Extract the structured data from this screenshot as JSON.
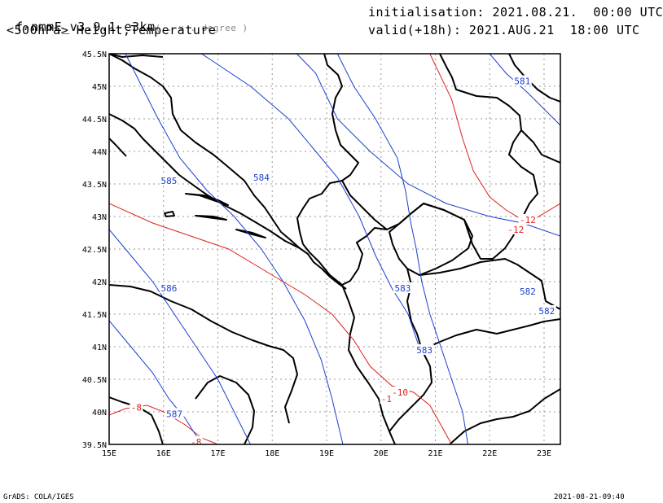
{
  "header": {
    "model": "f-nmmE_v3.9.1-e3km",
    "model_unit": "( . x . degree )",
    "level_title": "<500hPa> Height,Temperature",
    "init_label": "initialisation: 2021.08.21.  00:00 UTC",
    "valid_label": "valid(+18h): 2021.AUG.21  18:00 UTC"
  },
  "footer": {
    "credit": "GrADS: COLA/IGES",
    "timestamp": "2021-08-21-09:40"
  },
  "map": {
    "lon_range": [
      15,
      23.3
    ],
    "lat_range": [
      39.5,
      45.5
    ],
    "lon_ticks": [
      "15E",
      "16E",
      "17E",
      "18E",
      "19E",
      "20E",
      "21E",
      "22E",
      "23E"
    ],
    "lat_ticks": [
      "39.5N",
      "40N",
      "40.5N",
      "41N",
      "41.5N",
      "42N",
      "42.5N",
      "43N",
      "43.5N",
      "44N",
      "44.5N",
      "45N",
      "45.5N"
    ],
    "height_color": "#1a3fd0",
    "temperature_color": "#e0201c",
    "coast_color": "#000000",
    "height_contours": [
      {
        "label": "581",
        "points": [
          [
            18.45,
            45.5
          ],
          [
            18.8,
            45.2
          ],
          [
            19.2,
            44.5
          ],
          [
            19.8,
            44.0
          ],
          [
            20.5,
            43.5
          ],
          [
            21.2,
            43.2
          ],
          [
            22.0,
            43.0
          ],
          [
            22.6,
            42.9
          ],
          [
            23.3,
            42.7
          ]
        ]
      },
      {
        "label": "582",
        "points": [
          [
            22.0,
            45.5
          ],
          [
            22.3,
            45.2
          ],
          [
            22.7,
            44.9
          ],
          [
            23.3,
            44.4
          ]
        ]
      },
      {
        "label": "583",
        "points": [
          [
            19.2,
            45.5
          ],
          [
            19.5,
            45.0
          ],
          [
            19.9,
            44.5
          ],
          [
            20.3,
            43.9
          ],
          [
            20.45,
            43.4
          ],
          [
            20.55,
            42.9
          ],
          [
            20.65,
            42.5
          ],
          [
            20.75,
            42.0
          ],
          [
            20.9,
            41.5
          ],
          [
            21.1,
            41.0
          ],
          [
            21.3,
            40.5
          ],
          [
            21.5,
            40.0
          ],
          [
            21.6,
            39.5
          ]
        ]
      },
      {
        "label": "584",
        "points": [
          [
            16.7,
            45.5
          ],
          [
            17.6,
            45.0
          ],
          [
            18.3,
            44.5
          ],
          [
            18.8,
            44.0
          ],
          [
            19.2,
            43.6
          ],
          [
            19.6,
            43.0
          ],
          [
            19.9,
            42.4
          ],
          [
            20.2,
            41.9
          ],
          [
            20.5,
            41.5
          ],
          [
            20.7,
            41.0
          ]
        ]
      },
      {
        "label": "585",
        "points": [
          [
            15.3,
            45.5
          ],
          [
            15.6,
            45.0
          ],
          [
            15.9,
            44.5
          ],
          [
            16.3,
            43.9
          ],
          [
            16.8,
            43.4
          ],
          [
            17.3,
            43.0
          ],
          [
            17.8,
            42.5
          ],
          [
            18.2,
            42.0
          ],
          [
            18.6,
            41.4
          ],
          [
            18.9,
            40.8
          ],
          [
            19.1,
            40.2
          ],
          [
            19.3,
            39.5
          ]
        ]
      },
      {
        "label": "586",
        "points": [
          [
            15.0,
            42.8
          ],
          [
            15.4,
            42.4
          ],
          [
            15.8,
            42.0
          ],
          [
            16.2,
            41.5
          ],
          [
            16.6,
            41.0
          ],
          [
            17.0,
            40.5
          ],
          [
            17.3,
            40.0
          ],
          [
            17.6,
            39.5
          ]
        ]
      },
      {
        "label": "587",
        "points": [
          [
            15.0,
            41.4
          ],
          [
            15.4,
            41.0
          ],
          [
            15.8,
            40.6
          ],
          [
            16.1,
            40.2
          ],
          [
            16.4,
            39.9
          ],
          [
            16.7,
            39.5
          ]
        ]
      }
    ],
    "height_labels": [
      {
        "text": "581",
        "lon": 22.6,
        "lat": 45.08
      },
      {
        "text": "582",
        "lon": 22.7,
        "lat": 41.85
      },
      {
        "text": "582",
        "lon": 23.05,
        "lat": 41.55
      },
      {
        "text": "583",
        "lon": 20.4,
        "lat": 41.9
      },
      {
        "text": "583",
        "lon": 20.8,
        "lat": 40.95
      },
      {
        "text": "584",
        "lon": 17.8,
        "lat": 43.6
      },
      {
        "text": "585",
        "lon": 16.1,
        "lat": 43.55
      },
      {
        "text": "586",
        "lon": 16.1,
        "lat": 41.9
      },
      {
        "text": "587",
        "lon": 16.2,
        "lat": 39.97
      }
    ],
    "temperature_contours": [
      {
        "label": "-12",
        "points": [
          [
            20.9,
            45.5
          ],
          [
            21.3,
            44.8
          ],
          [
            21.5,
            44.2
          ],
          [
            21.7,
            43.7
          ],
          [
            22.0,
            43.3
          ],
          [
            22.3,
            43.1
          ],
          [
            22.7,
            42.9
          ],
          [
            23.3,
            43.2
          ]
        ]
      },
      {
        "label": "-10",
        "points": [
          [
            15.0,
            43.2
          ],
          [
            15.8,
            42.9
          ],
          [
            16.5,
            42.7
          ],
          [
            17.2,
            42.5
          ],
          [
            18.0,
            42.1
          ],
          [
            18.6,
            41.8
          ],
          [
            19.1,
            41.5
          ],
          [
            19.5,
            41.1
          ],
          [
            19.8,
            40.7
          ],
          [
            20.2,
            40.4
          ],
          [
            20.6,
            40.3
          ],
          [
            20.9,
            40.1
          ],
          [
            21.1,
            39.8
          ],
          [
            21.3,
            39.5
          ]
        ]
      },
      {
        "label": "-8",
        "points": [
          [
            15.0,
            39.95
          ],
          [
            15.3,
            40.05
          ],
          [
            15.7,
            40.1
          ],
          [
            16.0,
            40.0
          ],
          [
            16.4,
            39.8
          ],
          [
            16.7,
            39.6
          ],
          [
            17.0,
            39.5
          ]
        ]
      }
    ],
    "temperature_labels": [
      {
        "text": "-12",
        "lon": 22.7,
        "lat": 42.95
      },
      {
        "text": "-12",
        "lon": 22.48,
        "lat": 42.8
      },
      {
        "text": "-10",
        "lon": 20.35,
        "lat": 40.3
      },
      {
        "text": "-1",
        "lon": 20.1,
        "lat": 40.2
      },
      {
        "text": "-8",
        "lon": 15.5,
        "lat": 40.07
      },
      {
        "text": "-8",
        "lon": 16.6,
        "lat": 39.54
      }
    ]
  }
}
